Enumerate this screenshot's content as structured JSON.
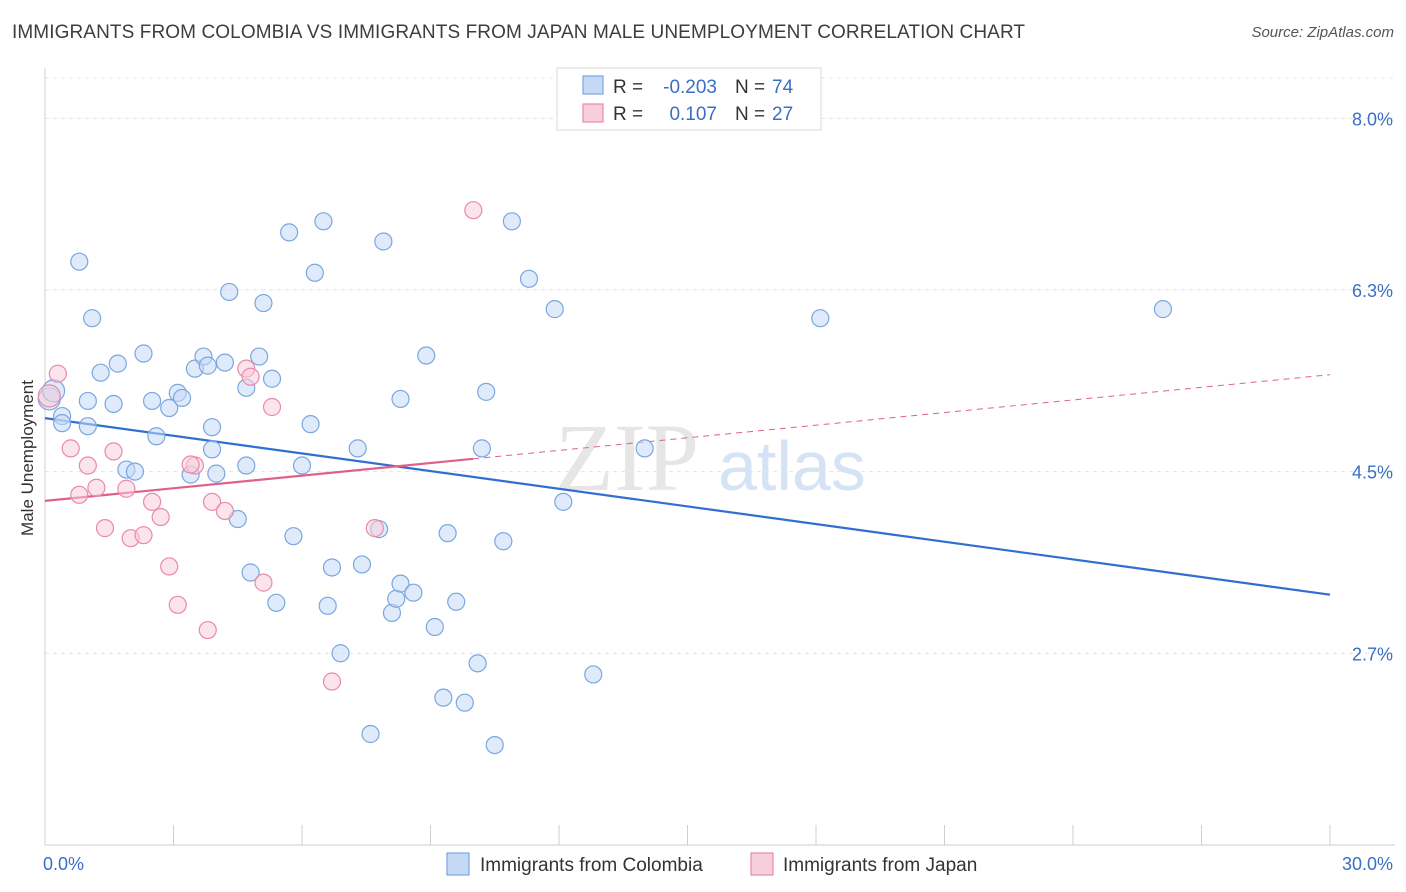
{
  "chart_data": {
    "type": "scatter",
    "title": "IMMIGRANTS FROM COLOMBIA VS IMMIGRANTS FROM JAPAN MALE UNEMPLOYMENT CORRELATION CHART",
    "source": "Source: ZipAtlas.com",
    "xlabel": "",
    "ylabel": "Male Unemployment",
    "xlim": [
      0,
      30
    ],
    "ylim": [
      0.8,
      8.4
    ],
    "x_tick_labels": [
      "0.0%",
      "30.0%"
    ],
    "y_ticks": [
      2.7,
      4.5,
      6.3,
      8.0
    ],
    "y_tick_labels": [
      "2.7%",
      "4.5%",
      "6.3%",
      "8.0%"
    ],
    "grid": true,
    "watermark": {
      "zip": "ZIP",
      "atlas": "atlas"
    },
    "legend": [
      {
        "r_label": "R =",
        "r_value": "-0.203",
        "n_label": "N =",
        "n_value": "74"
      },
      {
        "r_label": "R =",
        "r_value": "0.107",
        "n_label": "N =",
        "n_value": "27"
      }
    ],
    "series": [
      {
        "name": "Immigrants from Colombia",
        "color": "#7aa7e0",
        "fill": "#c5d9f5",
        "trend": {
          "x": [
            0,
            30
          ],
          "y": [
            5.03,
            3.28
          ],
          "dashed_from": null
        },
        "points": [
          [
            0.1,
            5.22
          ],
          [
            0.2,
            5.3
          ],
          [
            0.4,
            5.05
          ],
          [
            0.4,
            4.98
          ],
          [
            0.8,
            6.58
          ],
          [
            1.0,
            4.95
          ],
          [
            1.0,
            5.2
          ],
          [
            1.1,
            6.02
          ],
          [
            1.3,
            5.48
          ],
          [
            1.6,
            5.17
          ],
          [
            1.7,
            5.57
          ],
          [
            1.9,
            4.52
          ],
          [
            2.1,
            4.5
          ],
          [
            2.3,
            5.67
          ],
          [
            2.5,
            5.2
          ],
          [
            2.6,
            4.85
          ],
          [
            2.9,
            5.13
          ],
          [
            3.1,
            5.28
          ],
          [
            3.2,
            5.23
          ],
          [
            3.4,
            4.47
          ],
          [
            3.5,
            5.52
          ],
          [
            3.7,
            5.64
          ],
          [
            3.8,
            5.55
          ],
          [
            3.9,
            4.94
          ],
          [
            4.0,
            4.48
          ],
          [
            4.2,
            5.58
          ],
          [
            4.3,
            6.28
          ],
          [
            4.5,
            4.03
          ],
          [
            4.7,
            5.33
          ],
          [
            4.8,
            3.5
          ],
          [
            5.0,
            5.64
          ],
          [
            5.1,
            6.17
          ],
          [
            5.3,
            5.42
          ],
          [
            5.4,
            3.2
          ],
          [
            5.7,
            6.87
          ],
          [
            5.8,
            3.86
          ],
          [
            6.0,
            4.56
          ],
          [
            6.2,
            4.97
          ],
          [
            6.3,
            6.47
          ],
          [
            6.5,
            6.98
          ],
          [
            6.6,
            3.17
          ],
          [
            6.7,
            3.55
          ],
          [
            6.9,
            2.7
          ],
          [
            7.3,
            4.73
          ],
          [
            7.4,
            3.58
          ],
          [
            7.6,
            1.9
          ],
          [
            7.8,
            3.93
          ],
          [
            7.9,
            6.78
          ],
          [
            8.1,
            3.1
          ],
          [
            8.2,
            3.24
          ],
          [
            8.3,
            3.39
          ],
          [
            8.3,
            5.22
          ],
          [
            8.6,
            3.3
          ],
          [
            8.9,
            5.65
          ],
          [
            9.1,
            2.96
          ],
          [
            9.3,
            2.26
          ],
          [
            9.4,
            3.89
          ],
          [
            9.6,
            3.21
          ],
          [
            9.8,
            2.21
          ],
          [
            10.1,
            2.6
          ],
          [
            10.3,
            5.29
          ],
          [
            10.5,
            1.79
          ],
          [
            10.7,
            3.81
          ],
          [
            10.9,
            6.98
          ],
          [
            11.3,
            6.41
          ],
          [
            11.9,
            6.11
          ],
          [
            12.1,
            4.2
          ],
          [
            12.8,
            2.49
          ],
          [
            14.0,
            4.73
          ],
          [
            18.1,
            6.02
          ],
          [
            26.1,
            6.11
          ],
          [
            10.2,
            4.73
          ],
          [
            4.7,
            4.56
          ],
          [
            3.9,
            4.72
          ]
        ]
      },
      {
        "name": "Immigrants from Japan",
        "color": "#e88aaa",
        "fill": "#f7cedd",
        "trend": {
          "x": [
            0,
            30
          ],
          "y": [
            4.21,
            5.46
          ],
          "dashed_from": 10
        },
        "points": [
          [
            0.1,
            5.25
          ],
          [
            0.3,
            5.47
          ],
          [
            0.6,
            4.73
          ],
          [
            0.8,
            4.27
          ],
          [
            1.0,
            4.56
          ],
          [
            1.2,
            4.34
          ],
          [
            1.4,
            3.94
          ],
          [
            1.6,
            4.7
          ],
          [
            1.9,
            4.33
          ],
          [
            2.0,
            3.84
          ],
          [
            2.3,
            3.87
          ],
          [
            2.5,
            4.2
          ],
          [
            2.7,
            4.05
          ],
          [
            2.9,
            3.56
          ],
          [
            3.1,
            3.18
          ],
          [
            3.5,
            4.56
          ],
          [
            3.8,
            2.93
          ],
          [
            3.9,
            4.2
          ],
          [
            4.2,
            4.11
          ],
          [
            4.7,
            5.52
          ],
          [
            4.8,
            5.44
          ],
          [
            5.1,
            3.4
          ],
          [
            5.3,
            5.14
          ],
          [
            6.7,
            2.42
          ],
          [
            7.7,
            3.94
          ],
          [
            10.0,
            7.09
          ],
          [
            3.4,
            4.57
          ]
        ]
      }
    ]
  }
}
